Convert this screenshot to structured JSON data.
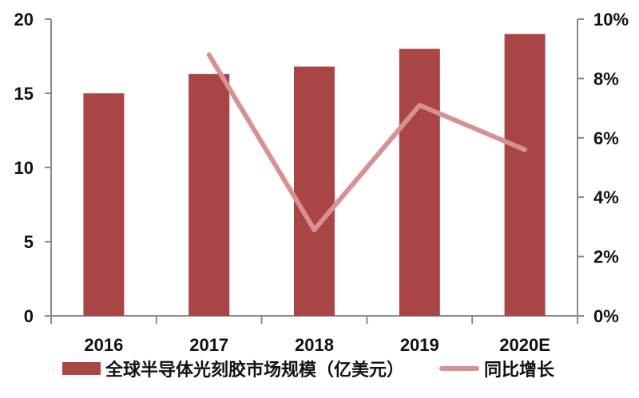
{
  "chart_data": {
    "type": "bar+line",
    "title": "",
    "categories": [
      "2016",
      "2017",
      "2018",
      "2019",
      "2020E"
    ],
    "series": [
      {
        "name": "全球半导体光刻胶市场规模（亿美元）",
        "type": "bar",
        "axis": "left",
        "color": "#a94545",
        "values": [
          15.0,
          16.3,
          16.8,
          18.0,
          19.0
        ]
      },
      {
        "name": "同比增长",
        "type": "line",
        "axis": "right",
        "color": "#d79193",
        "values": [
          null,
          8.8,
          2.9,
          7.1,
          5.6
        ],
        "unit": "%"
      }
    ],
    "left_axis": {
      "ylim": [
        0,
        20
      ],
      "ticks": [
        "0",
        "5",
        "10",
        "15",
        "20"
      ]
    },
    "right_axis": {
      "ylim": [
        0,
        10
      ],
      "ticks": [
        "0%",
        "2%",
        "4%",
        "6%",
        "8%",
        "10%"
      ]
    },
    "xlabel": "",
    "ylabel": "",
    "grid": false,
    "legend_position": "bottom"
  },
  "legend": {
    "bar_label": "全球半导体光刻胶市场规模（亿美元）",
    "line_label": "同比增长"
  }
}
